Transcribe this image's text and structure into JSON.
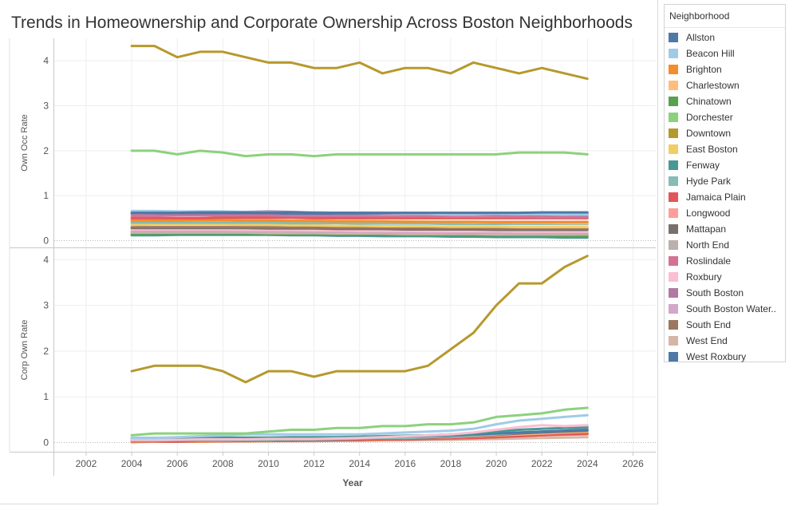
{
  "title": "Trends in Homeownership and Corporate Ownership Across Boston Neighborhoods",
  "legend": {
    "title": "Neighborhood",
    "items": [
      {
        "label": "Allston",
        "color": "#4e79a7"
      },
      {
        "label": "Beacon Hill",
        "color": "#a0cbe8"
      },
      {
        "label": "Brighton",
        "color": "#f28e2b"
      },
      {
        "label": "Charlestown",
        "color": "#ffbe7d"
      },
      {
        "label": "Chinatown",
        "color": "#59a14f"
      },
      {
        "label": "Dorchester",
        "color": "#8cd17d"
      },
      {
        "label": "Downtown",
        "color": "#b6992d"
      },
      {
        "label": "East Boston",
        "color": "#f1ce63"
      },
      {
        "label": "Fenway",
        "color": "#499894"
      },
      {
        "label": "Hyde Park",
        "color": "#86bcb6"
      },
      {
        "label": "Jamaica Plain",
        "color": "#e15759"
      },
      {
        "label": "Longwood",
        "color": "#ff9d9a"
      },
      {
        "label": "Mattapan",
        "color": "#79706e"
      },
      {
        "label": "North End",
        "color": "#bab0ac"
      },
      {
        "label": "Roslindale",
        "color": "#d37295"
      },
      {
        "label": "Roxbury",
        "color": "#fabfd2"
      },
      {
        "label": "South Boston",
        "color": "#b07aa1"
      },
      {
        "label": "South Boston Water..",
        "color": "#d4a6c8"
      },
      {
        "label": "South End",
        "color": "#9d7660"
      },
      {
        "label": "West End",
        "color": "#d7b5a6"
      },
      {
        "label": "West Roxbury",
        "color": "#4e79a7"
      }
    ]
  },
  "chart_data": [
    {
      "type": "line",
      "panel": "top",
      "ylabel": "Own Occ Rate",
      "ylim": [
        -0.15,
        4.5
      ],
      "yticks": [
        0,
        1,
        2,
        3,
        4
      ],
      "xlabel": "Year",
      "xlim": [
        2000.6,
        2027.0
      ],
      "xticks": [
        2002,
        2004,
        2006,
        2008,
        2010,
        2012,
        2014,
        2016,
        2018,
        2020,
        2022,
        2024,
        2026
      ],
      "x": [
        2004,
        2005,
        2006,
        2007,
        2008,
        2009,
        2010,
        2011,
        2012,
        2013,
        2014,
        2015,
        2016,
        2017,
        2018,
        2019,
        2020,
        2021,
        2022,
        2023,
        2024
      ],
      "series": [
        {
          "name": "Downtown",
          "values": [
            4.33,
            4.33,
            4.08,
            4.2,
            4.2,
            4.08,
            3.96,
            3.96,
            3.84,
            3.84,
            3.96,
            3.72,
            3.84,
            3.84,
            3.72,
            3.96,
            3.84,
            3.72,
            3.84,
            3.72,
            3.6
          ]
        },
        {
          "name": "Dorchester",
          "values": [
            2.0,
            2.0,
            1.92,
            2.0,
            1.96,
            1.88,
            1.92,
            1.92,
            1.88,
            1.92,
            1.92,
            1.92,
            1.92,
            1.92,
            1.92,
            1.92,
            1.92,
            1.96,
            1.96,
            1.96,
            1.92
          ]
        },
        {
          "name": "Allston",
          "values": [
            0.62,
            0.62,
            0.62,
            0.63,
            0.63,
            0.63,
            0.63,
            0.63,
            0.62,
            0.62,
            0.62,
            0.62,
            0.62,
            0.62,
            0.62,
            0.62,
            0.62,
            0.62,
            0.63,
            0.63,
            0.63
          ]
        },
        {
          "name": "Beacon Hill",
          "values": [
            0.66,
            0.66,
            0.65,
            0.65,
            0.65,
            0.64,
            0.64,
            0.63,
            0.63,
            0.62,
            0.62,
            0.62,
            0.61,
            0.61,
            0.6,
            0.6,
            0.6,
            0.59,
            0.59,
            0.58,
            0.58
          ]
        },
        {
          "name": "South Boston",
          "values": [
            0.6,
            0.61,
            0.62,
            0.63,
            0.64,
            0.64,
            0.65,
            0.64,
            0.63,
            0.62,
            0.62,
            0.61,
            0.6,
            0.6,
            0.59,
            0.59,
            0.58,
            0.58,
            0.57,
            0.57,
            0.56
          ]
        },
        {
          "name": "Roslindale",
          "values": [
            0.55,
            0.55,
            0.56,
            0.56,
            0.56,
            0.56,
            0.56,
            0.55,
            0.55,
            0.55,
            0.55,
            0.54,
            0.54,
            0.54,
            0.53,
            0.53,
            0.53,
            0.53,
            0.52,
            0.52,
            0.52
          ]
        },
        {
          "name": "West Roxbury",
          "values": [
            0.6,
            0.6,
            0.6,
            0.6,
            0.6,
            0.6,
            0.6,
            0.6,
            0.6,
            0.6,
            0.6,
            0.6,
            0.6,
            0.6,
            0.6,
            0.6,
            0.6,
            0.6,
            0.6,
            0.6,
            0.6
          ]
        },
        {
          "name": "Jamaica Plain",
          "values": [
            0.5,
            0.5,
            0.5,
            0.5,
            0.51,
            0.51,
            0.51,
            0.51,
            0.5,
            0.5,
            0.5,
            0.5,
            0.5,
            0.5,
            0.5,
            0.5,
            0.5,
            0.5,
            0.5,
            0.5,
            0.5
          ]
        },
        {
          "name": "Brighton",
          "values": [
            0.45,
            0.45,
            0.45,
            0.46,
            0.46,
            0.45,
            0.45,
            0.44,
            0.44,
            0.43,
            0.43,
            0.43,
            0.42,
            0.42,
            0.42,
            0.42,
            0.41,
            0.41,
            0.41,
            0.41,
            0.41
          ]
        },
        {
          "name": "Charlestown",
          "values": [
            0.48,
            0.48,
            0.47,
            0.47,
            0.47,
            0.46,
            0.46,
            0.45,
            0.45,
            0.44,
            0.44,
            0.43,
            0.43,
            0.42,
            0.42,
            0.41,
            0.41,
            0.4,
            0.4,
            0.39,
            0.39
          ]
        },
        {
          "name": "Hyde Park",
          "values": [
            0.4,
            0.4,
            0.4,
            0.4,
            0.4,
            0.4,
            0.4,
            0.39,
            0.39,
            0.39,
            0.38,
            0.38,
            0.38,
            0.38,
            0.37,
            0.37,
            0.37,
            0.37,
            0.37,
            0.37,
            0.37
          ]
        },
        {
          "name": "East Boston",
          "values": [
            0.35,
            0.36,
            0.36,
            0.36,
            0.36,
            0.35,
            0.35,
            0.34,
            0.34,
            0.33,
            0.33,
            0.32,
            0.32,
            0.32,
            0.31,
            0.31,
            0.31,
            0.3,
            0.3,
            0.3,
            0.3
          ]
        },
        {
          "name": "Longwood",
          "values": [
            0.42,
            0.42,
            0.42,
            0.42,
            0.42,
            0.42,
            0.42,
            0.42,
            0.42,
            0.42,
            0.42,
            0.42,
            0.42,
            0.42,
            0.42,
            0.42,
            0.42,
            0.42,
            0.42,
            0.42,
            0.42
          ]
        },
        {
          "name": "South End",
          "values": [
            0.3,
            0.3,
            0.3,
            0.3,
            0.3,
            0.3,
            0.3,
            0.3,
            0.29,
            0.29,
            0.29,
            0.29,
            0.28,
            0.28,
            0.28,
            0.28,
            0.27,
            0.27,
            0.27,
            0.27,
            0.27
          ]
        },
        {
          "name": "Mattapan",
          "values": [
            0.28,
            0.28,
            0.28,
            0.28,
            0.28,
            0.28,
            0.27,
            0.27,
            0.27,
            0.26,
            0.26,
            0.26,
            0.25,
            0.25,
            0.25,
            0.25,
            0.24,
            0.24,
            0.24,
            0.24,
            0.24
          ]
        },
        {
          "name": "Roxbury",
          "values": [
            0.25,
            0.25,
            0.25,
            0.25,
            0.25,
            0.24,
            0.24,
            0.24,
            0.23,
            0.23,
            0.22,
            0.22,
            0.22,
            0.21,
            0.21,
            0.21,
            0.21,
            0.2,
            0.2,
            0.2,
            0.2
          ]
        },
        {
          "name": "South Boston Water..",
          "values": [
            0.22,
            0.22,
            0.22,
            0.22,
            0.22,
            0.22,
            0.21,
            0.21,
            0.21,
            0.2,
            0.2,
            0.2,
            0.19,
            0.19,
            0.19,
            0.19,
            0.18,
            0.18,
            0.18,
            0.18,
            0.18
          ]
        },
        {
          "name": "North End",
          "values": [
            0.2,
            0.2,
            0.2,
            0.2,
            0.2,
            0.2,
            0.2,
            0.2,
            0.19,
            0.19,
            0.19,
            0.18,
            0.18,
            0.18,
            0.17,
            0.17,
            0.17,
            0.16,
            0.16,
            0.16,
            0.15
          ]
        },
        {
          "name": "West End",
          "values": [
            0.18,
            0.18,
            0.18,
            0.18,
            0.18,
            0.18,
            0.17,
            0.17,
            0.17,
            0.16,
            0.16,
            0.16,
            0.15,
            0.15,
            0.15,
            0.15,
            0.14,
            0.14,
            0.14,
            0.14,
            0.14
          ]
        },
        {
          "name": "Chinatown",
          "values": [
            0.15,
            0.16,
            0.16,
            0.16,
            0.16,
            0.16,
            0.15,
            0.15,
            0.15,
            0.14,
            0.14,
            0.14,
            0.13,
            0.13,
            0.13,
            0.12,
            0.12,
            0.12,
            0.12,
            0.11,
            0.11
          ]
        },
        {
          "name": "Fenway",
          "values": [
            0.12,
            0.12,
            0.13,
            0.13,
            0.13,
            0.13,
            0.13,
            0.12,
            0.12,
            0.11,
            0.11,
            0.1,
            0.1,
            0.1,
            0.09,
            0.09,
            0.08,
            0.08,
            0.08,
            0.07,
            0.07
          ]
        }
      ]
    },
    {
      "type": "line",
      "panel": "bottom",
      "ylabel": "Corp Own Rate",
      "ylim": [
        -0.2,
        4.25
      ],
      "yticks": [
        0,
        1,
        2,
        3,
        4
      ],
      "xlabel": "Year",
      "xlim": [
        2000.6,
        2027.0
      ],
      "x": [
        2004,
        2005,
        2006,
        2007,
        2008,
        2009,
        2010,
        2011,
        2012,
        2013,
        2014,
        2015,
        2016,
        2017,
        2018,
        2019,
        2020,
        2021,
        2022,
        2023,
        2024
      ],
      "series": [
        {
          "name": "Downtown",
          "values": [
            1.56,
            1.68,
            1.68,
            1.68,
            1.56,
            1.32,
            1.56,
            1.56,
            1.44,
            1.56,
            1.56,
            1.56,
            1.56,
            1.68,
            2.04,
            2.4,
            3.0,
            3.48,
            3.48,
            3.84,
            4.08
          ]
        },
        {
          "name": "Dorchester",
          "values": [
            0.16,
            0.2,
            0.2,
            0.2,
            0.2,
            0.2,
            0.24,
            0.28,
            0.28,
            0.32,
            0.32,
            0.36,
            0.36,
            0.4,
            0.4,
            0.44,
            0.56,
            0.6,
            0.64,
            0.72,
            0.76
          ]
        },
        {
          "name": "Beacon Hill",
          "values": [
            0.1,
            0.1,
            0.12,
            0.14,
            0.16,
            0.18,
            0.18,
            0.18,
            0.18,
            0.18,
            0.18,
            0.2,
            0.22,
            0.24,
            0.26,
            0.3,
            0.4,
            0.48,
            0.52,
            0.56,
            0.6
          ]
        },
        {
          "name": "Roxbury",
          "values": [
            0.06,
            0.06,
            0.06,
            0.07,
            0.07,
            0.07,
            0.08,
            0.08,
            0.08,
            0.09,
            0.1,
            0.12,
            0.14,
            0.16,
            0.18,
            0.22,
            0.28,
            0.34,
            0.38,
            0.36,
            0.38
          ]
        },
        {
          "name": "Fenway",
          "values": [
            0.1,
            0.1,
            0.1,
            0.1,
            0.11,
            0.11,
            0.11,
            0.12,
            0.12,
            0.12,
            0.13,
            0.14,
            0.15,
            0.16,
            0.18,
            0.2,
            0.24,
            0.28,
            0.3,
            0.32,
            0.34
          ]
        },
        {
          "name": "Allston",
          "values": [
            0.08,
            0.08,
            0.08,
            0.08,
            0.09,
            0.09,
            0.1,
            0.1,
            0.1,
            0.11,
            0.12,
            0.13,
            0.14,
            0.15,
            0.16,
            0.18,
            0.2,
            0.22,
            0.24,
            0.26,
            0.28
          ]
        },
        {
          "name": "Hyde Park",
          "values": [
            0.05,
            0.05,
            0.06,
            0.06,
            0.06,
            0.06,
            0.06,
            0.07,
            0.07,
            0.08,
            0.09,
            0.1,
            0.1,
            0.12,
            0.14,
            0.16,
            0.18,
            0.22,
            0.24,
            0.26,
            0.3
          ]
        },
        {
          "name": "Mattapan",
          "values": [
            0.04,
            0.04,
            0.04,
            0.05,
            0.05,
            0.05,
            0.05,
            0.06,
            0.06,
            0.07,
            0.08,
            0.09,
            0.1,
            0.11,
            0.13,
            0.15,
            0.17,
            0.2,
            0.22,
            0.24,
            0.26
          ]
        },
        {
          "name": "Charlestown",
          "values": [
            0.03,
            0.03,
            0.04,
            0.04,
            0.04,
            0.05,
            0.05,
            0.06,
            0.06,
            0.07,
            0.08,
            0.09,
            0.1,
            0.11,
            0.12,
            0.14,
            0.16,
            0.18,
            0.2,
            0.22,
            0.24
          ]
        },
        {
          "name": "Jamaica Plain",
          "values": [
            0.02,
            0.02,
            0.02,
            0.03,
            0.03,
            0.03,
            0.04,
            0.04,
            0.05,
            0.05,
            0.06,
            0.07,
            0.07,
            0.08,
            0.09,
            0.1,
            0.12,
            0.14,
            0.16,
            0.18,
            0.2
          ]
        },
        {
          "name": "Brighton",
          "values": [
            0.01,
            0.02,
            0.02,
            0.02,
            0.03,
            0.03,
            0.03,
            0.04,
            0.04,
            0.05,
            0.05,
            0.06,
            0.07,
            0.08,
            0.09,
            0.1,
            0.12,
            0.14,
            0.16,
            0.17,
            0.18
          ]
        },
        {
          "name": "South Boston",
          "values": [
            0.04,
            0.04,
            0.05,
            0.05,
            0.05,
            0.06,
            0.06,
            0.06,
            0.07,
            0.07,
            0.08,
            0.08,
            0.09,
            0.1,
            0.11,
            0.12,
            0.14,
            0.16,
            0.17,
            0.18,
            0.2
          ]
        },
        {
          "name": "West End",
          "values": [
            0.02,
            0.02,
            0.02,
            0.02,
            0.02,
            0.03,
            0.03,
            0.03,
            0.03,
            0.04,
            0.04,
            0.05,
            0.05,
            0.06,
            0.06,
            0.07,
            0.08,
            0.09,
            0.1,
            0.11,
            0.12
          ]
        }
      ]
    }
  ]
}
